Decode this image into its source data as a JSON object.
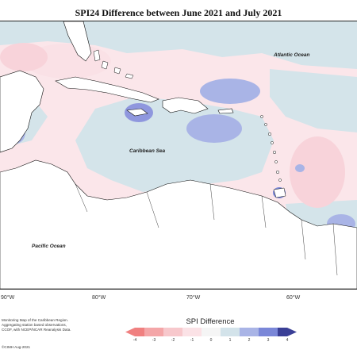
{
  "title": "SPI24 Difference between June 2021 and July 2021",
  "map_labels": {
    "atlantic": "Atlantic Ocean",
    "caribbean": "Caribbean Sea",
    "pacific": "Pacific Ocean"
  },
  "longitude_labels": [
    "90°W",
    "80°W",
    "70°W",
    "60°W"
  ],
  "credits": [
    "Monitoring Map of the Caribbean Region.",
    "Aggregating station based observations,",
    "CCOF, with NCEP/NCAR Reanalysis Data."
  ],
  "copyright": "©CIMH Aug-2021",
  "legend": {
    "title": "SPI Difference",
    "ticks": [
      "-4",
      "-3",
      "-2",
      "-1",
      "0",
      "1",
      "2",
      "3",
      "4"
    ],
    "colors": [
      "#f08080",
      "#f4a6a8",
      "#f7c8cc",
      "#fbe2e6",
      "#d3e3ea",
      "#a9b4e6",
      "#7a87d8",
      "#5660b8",
      "#3a3f96"
    ]
  },
  "colors": {
    "ocean_neutral": "#d4e4ea",
    "ocean_pink": "#fae1e6",
    "blue_strong": "#8f97de",
    "blue_medium": "#a9b4e6",
    "land": "#ffffff"
  }
}
